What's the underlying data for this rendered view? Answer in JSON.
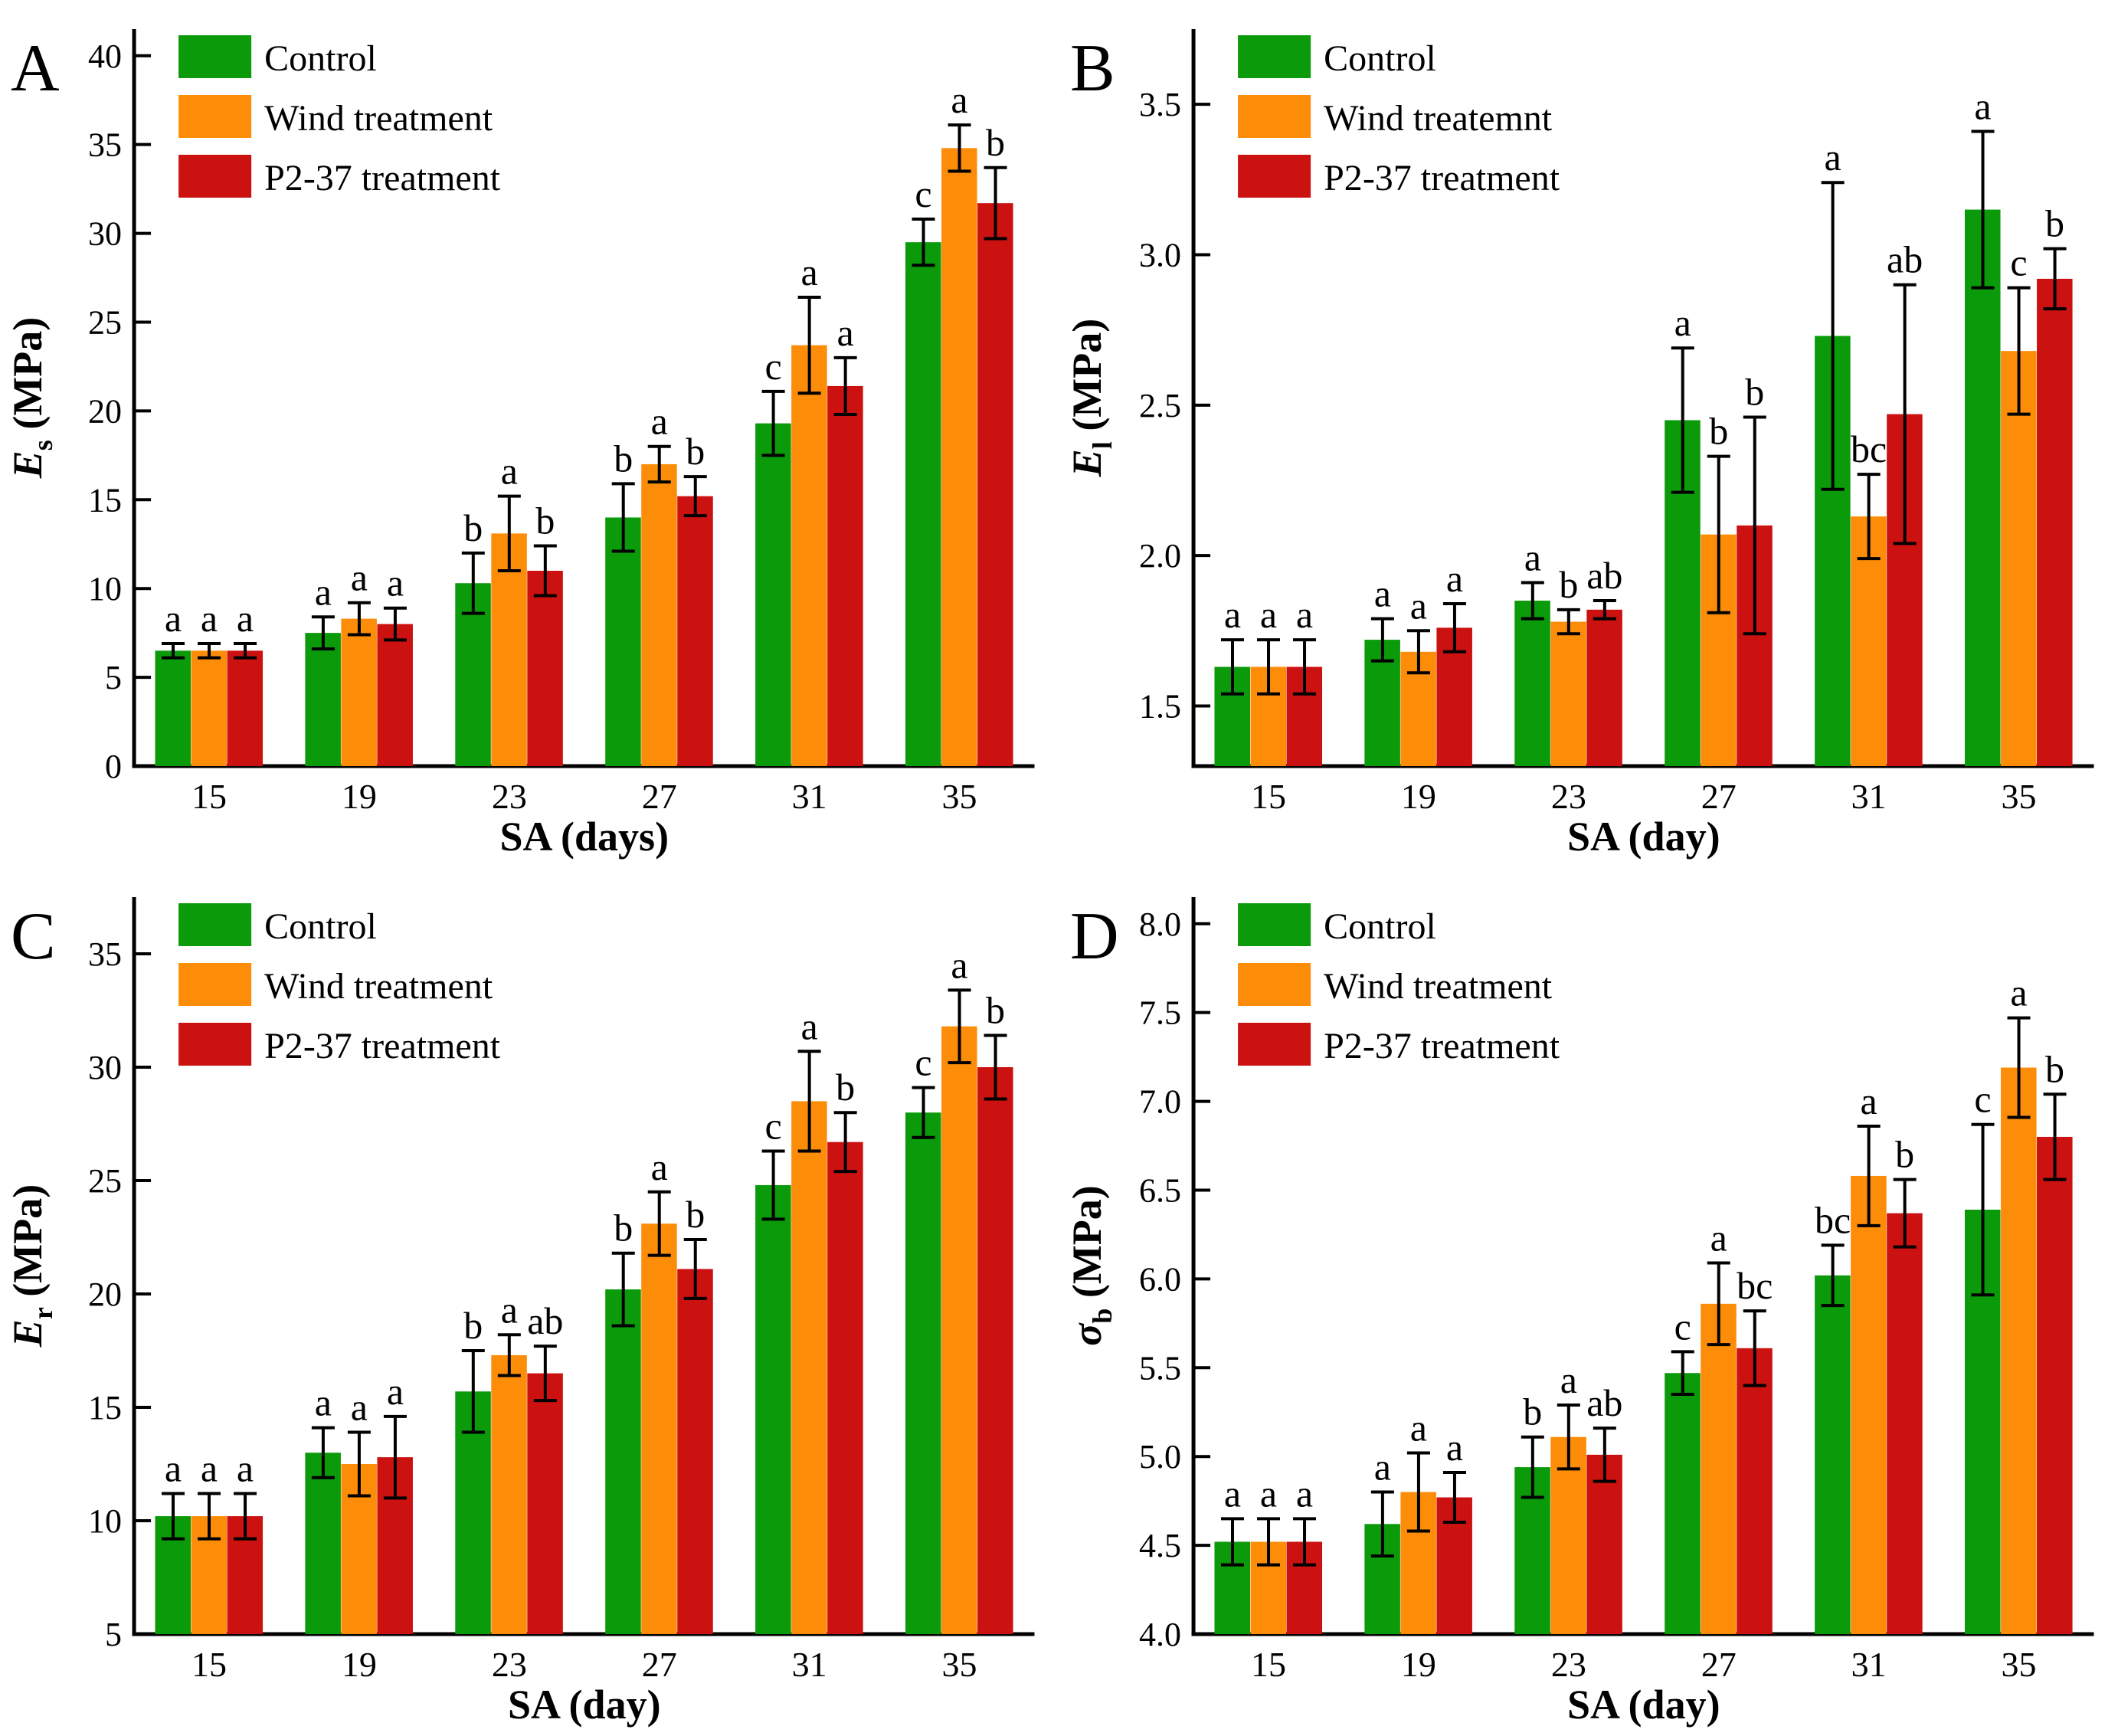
{
  "figure": {
    "background": "#ffffff",
    "axis_color": "#000000",
    "text_color": "#000000"
  },
  "chart_data": [
    {
      "panel": "A",
      "type": "bar",
      "xlabel": "SA (days)",
      "ylabel": {
        "var": "E",
        "sub": "s",
        "unit": "(MPa)"
      },
      "categories": [
        "15",
        "19",
        "23",
        "27",
        "31",
        "35"
      ],
      "ylim": [
        0,
        41.5
      ],
      "yticks": [
        0,
        5,
        10,
        15,
        20,
        25,
        30,
        35,
        40
      ],
      "ytick_decimals": 0,
      "legend_position": "top-left",
      "grid": false,
      "series": [
        {
          "name": "Control",
          "color": "#0a9a0a",
          "values": [
            6.5,
            7.5,
            10.3,
            14.0,
            19.3,
            29.5
          ],
          "errors": [
            0.4,
            0.9,
            1.7,
            1.9,
            1.8,
            1.3
          ],
          "letters": [
            "a",
            "a",
            "b",
            "b",
            "c",
            "c"
          ]
        },
        {
          "name": "Wind treatment",
          "color": "#fd8d08",
          "values": [
            6.5,
            8.3,
            13.1,
            17.0,
            23.7,
            34.8
          ],
          "errors": [
            0.4,
            0.9,
            2.1,
            1.0,
            2.7,
            1.3
          ],
          "letters": [
            "a",
            "a",
            "a",
            "a",
            "a",
            "a"
          ]
        },
        {
          "name": "P2-37 treatment",
          "color": "#cc1111",
          "values": [
            6.5,
            8.0,
            11.0,
            15.2,
            21.4,
            31.7
          ],
          "errors": [
            0.4,
            0.9,
            1.4,
            1.1,
            1.6,
            2.0
          ],
          "letters": [
            "a",
            "a",
            "b",
            "b",
            "a",
            "b"
          ]
        }
      ]
    },
    {
      "panel": "B",
      "type": "bar",
      "xlabel": "SA (day)",
      "ylabel": {
        "var": "E",
        "sub": "l",
        "unit": "(MPa)"
      },
      "categories": [
        "15",
        "19",
        "23",
        "27",
        "31",
        "35"
      ],
      "ylim": [
        1.3,
        3.75
      ],
      "yticks": [
        1.5,
        2.0,
        2.5,
        3.0,
        3.5
      ],
      "ytick_decimals": 1,
      "legend_position": "top-left",
      "grid": false,
      "series": [
        {
          "name": "Control",
          "color": "#0a9a0a",
          "values": [
            1.63,
            1.72,
            1.85,
            2.45,
            2.73,
            3.15
          ],
          "errors": [
            0.09,
            0.07,
            0.06,
            0.24,
            0.51,
            0.26
          ],
          "letters": [
            "a",
            "a",
            "a",
            "a",
            "a",
            "a"
          ]
        },
        {
          "name": "Wind treatemnt",
          "color": "#fd8d08",
          "values": [
            1.63,
            1.68,
            1.78,
            2.07,
            2.13,
            2.68
          ],
          "errors": [
            0.09,
            0.07,
            0.04,
            0.26,
            0.14,
            0.21
          ],
          "letters": [
            "a",
            "a",
            "b",
            "b",
            "bc",
            "c"
          ]
        },
        {
          "name": "P2-37 treatment",
          "color": "#cc1111",
          "values": [
            1.63,
            1.76,
            1.82,
            2.1,
            2.47,
            2.92
          ],
          "errors": [
            0.09,
            0.08,
            0.03,
            0.36,
            0.43,
            0.1
          ],
          "letters": [
            "a",
            "a",
            "ab",
            "b",
            "ab",
            "b"
          ]
        }
      ]
    },
    {
      "panel": "C",
      "type": "bar",
      "xlabel": "SA (day)",
      "ylabel": {
        "var": "E",
        "sub": "r",
        "unit": "(MPa)"
      },
      "categories": [
        "15",
        "19",
        "23",
        "27",
        "31",
        "35"
      ],
      "ylim": [
        5,
        37.5
      ],
      "yticks": [
        5,
        10,
        15,
        20,
        25,
        30,
        35
      ],
      "ytick_decimals": 0,
      "legend_position": "top-left",
      "grid": false,
      "series": [
        {
          "name": "Control",
          "color": "#0a9a0a",
          "values": [
            10.2,
            13.0,
            15.7,
            20.2,
            24.8,
            28.0
          ],
          "errors": [
            1.0,
            1.1,
            1.8,
            1.6,
            1.5,
            1.1
          ],
          "letters": [
            "a",
            "a",
            "b",
            "b",
            "c",
            "c"
          ]
        },
        {
          "name": "Wind treatment",
          "color": "#fd8d08",
          "values": [
            10.2,
            12.5,
            17.3,
            23.1,
            28.5,
            31.8
          ],
          "errors": [
            1.0,
            1.4,
            0.9,
            1.4,
            2.2,
            1.6
          ],
          "letters": [
            "a",
            "a",
            "a",
            "a",
            "a",
            "a"
          ]
        },
        {
          "name": "P2-37 treatment",
          "color": "#cc1111",
          "values": [
            10.2,
            12.8,
            16.5,
            21.1,
            26.7,
            30.0
          ],
          "errors": [
            1.0,
            1.8,
            1.2,
            1.3,
            1.3,
            1.4
          ],
          "letters": [
            "a",
            "a",
            "ab",
            "b",
            "b",
            "b"
          ]
        }
      ]
    },
    {
      "panel": "D",
      "type": "bar",
      "xlabel": "SA (day)",
      "ylabel": {
        "var": "σ",
        "sub": "b",
        "unit": "(MPa)"
      },
      "categories": [
        "15",
        "19",
        "23",
        "27",
        "31",
        "35"
      ],
      "ylim": [
        4.0,
        8.15
      ],
      "yticks": [
        4.0,
        4.5,
        5.0,
        5.5,
        6.0,
        6.5,
        7.0,
        7.5,
        8.0
      ],
      "ytick_decimals": 1,
      "legend_position": "top-left",
      "grid": false,
      "series": [
        {
          "name": "Control",
          "color": "#0a9a0a",
          "values": [
            4.52,
            4.62,
            4.94,
            5.47,
            6.02,
            6.39
          ],
          "errors": [
            0.13,
            0.18,
            0.17,
            0.12,
            0.17,
            0.48
          ],
          "letters": [
            "a",
            "a",
            "b",
            "c",
            "bc",
            "c"
          ]
        },
        {
          "name": "Wind treatment",
          "color": "#fd8d08",
          "values": [
            4.52,
            4.8,
            5.11,
            5.86,
            6.58,
            7.19
          ],
          "errors": [
            0.13,
            0.22,
            0.18,
            0.23,
            0.28,
            0.28
          ],
          "letters": [
            "a",
            "a",
            "a",
            "a",
            "a",
            "a"
          ]
        },
        {
          "name": "P2-37 treatment",
          "color": "#cc1111",
          "values": [
            4.52,
            4.77,
            5.01,
            5.61,
            6.37,
            6.8
          ],
          "errors": [
            0.13,
            0.14,
            0.15,
            0.21,
            0.19,
            0.24
          ],
          "letters": [
            "a",
            "a",
            "ab",
            "bc",
            "b",
            "b"
          ]
        }
      ]
    }
  ]
}
